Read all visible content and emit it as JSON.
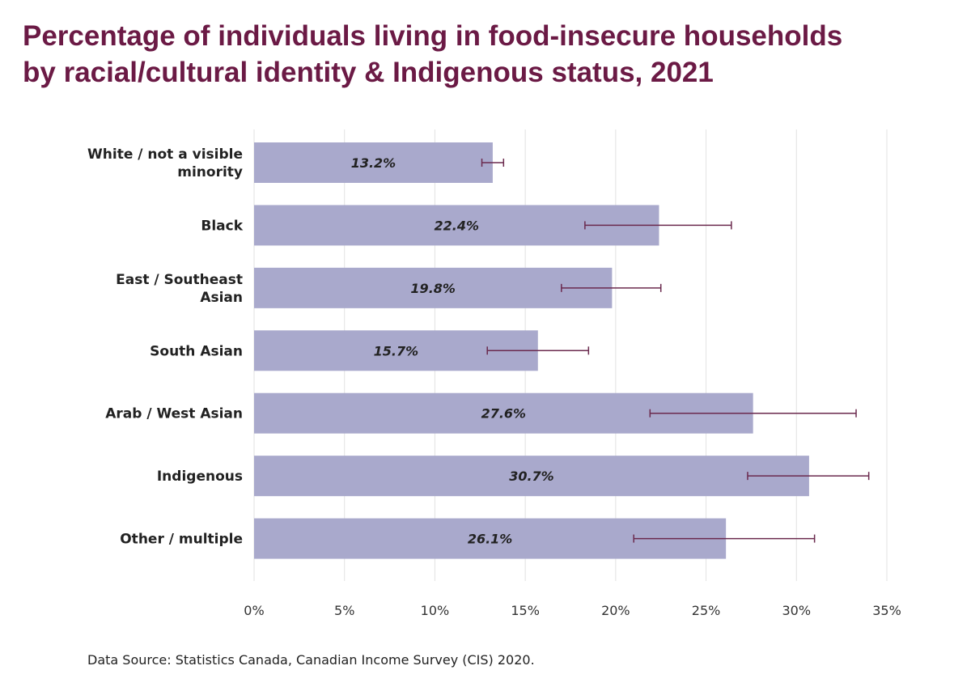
{
  "title_line1": "Percentage of individuals living in food-insecure households",
  "title_line2": "by racial/cultural identity & Indigenous status, 2021",
  "source": "Data Source: Statistics Canada, Canadian Income Survey (CIS) 2020.",
  "colors": {
    "bar": "#a9a9cc",
    "error_bar": "#6b2a4e",
    "title": "#6b1a45",
    "grid": "#e2e2e2"
  },
  "chart_data": {
    "type": "bar",
    "orientation": "horizontal",
    "categories": [
      [
        "White / not a visible",
        "minority"
      ],
      [
        "Black"
      ],
      [
        "East / Southeast",
        "Asian"
      ],
      [
        "South Asian"
      ],
      [
        "Arab / West Asian"
      ],
      [
        "Indigenous"
      ],
      [
        "Other / multiple"
      ]
    ],
    "values": [
      13.2,
      22.4,
      19.8,
      15.7,
      27.6,
      30.7,
      26.1
    ],
    "data_labels": [
      "13.2%",
      "22.4%",
      "19.8%",
      "15.7%",
      "27.6%",
      "30.7%",
      "26.1%"
    ],
    "error_low": [
      12.6,
      18.3,
      17.0,
      12.9,
      21.9,
      27.3,
      21.0
    ],
    "error_high": [
      13.8,
      26.4,
      22.5,
      18.5,
      33.3,
      34.0,
      31.0
    ],
    "x_ticks": [
      0,
      5,
      10,
      15,
      20,
      25,
      30,
      35
    ],
    "x_tick_labels": [
      "0%",
      "5%",
      "10%",
      "15%",
      "20%",
      "25%",
      "30%",
      "35%"
    ],
    "xlim": [
      0,
      35
    ],
    "xlabel": "",
    "ylabel": "",
    "grid": true,
    "legend": "none"
  }
}
